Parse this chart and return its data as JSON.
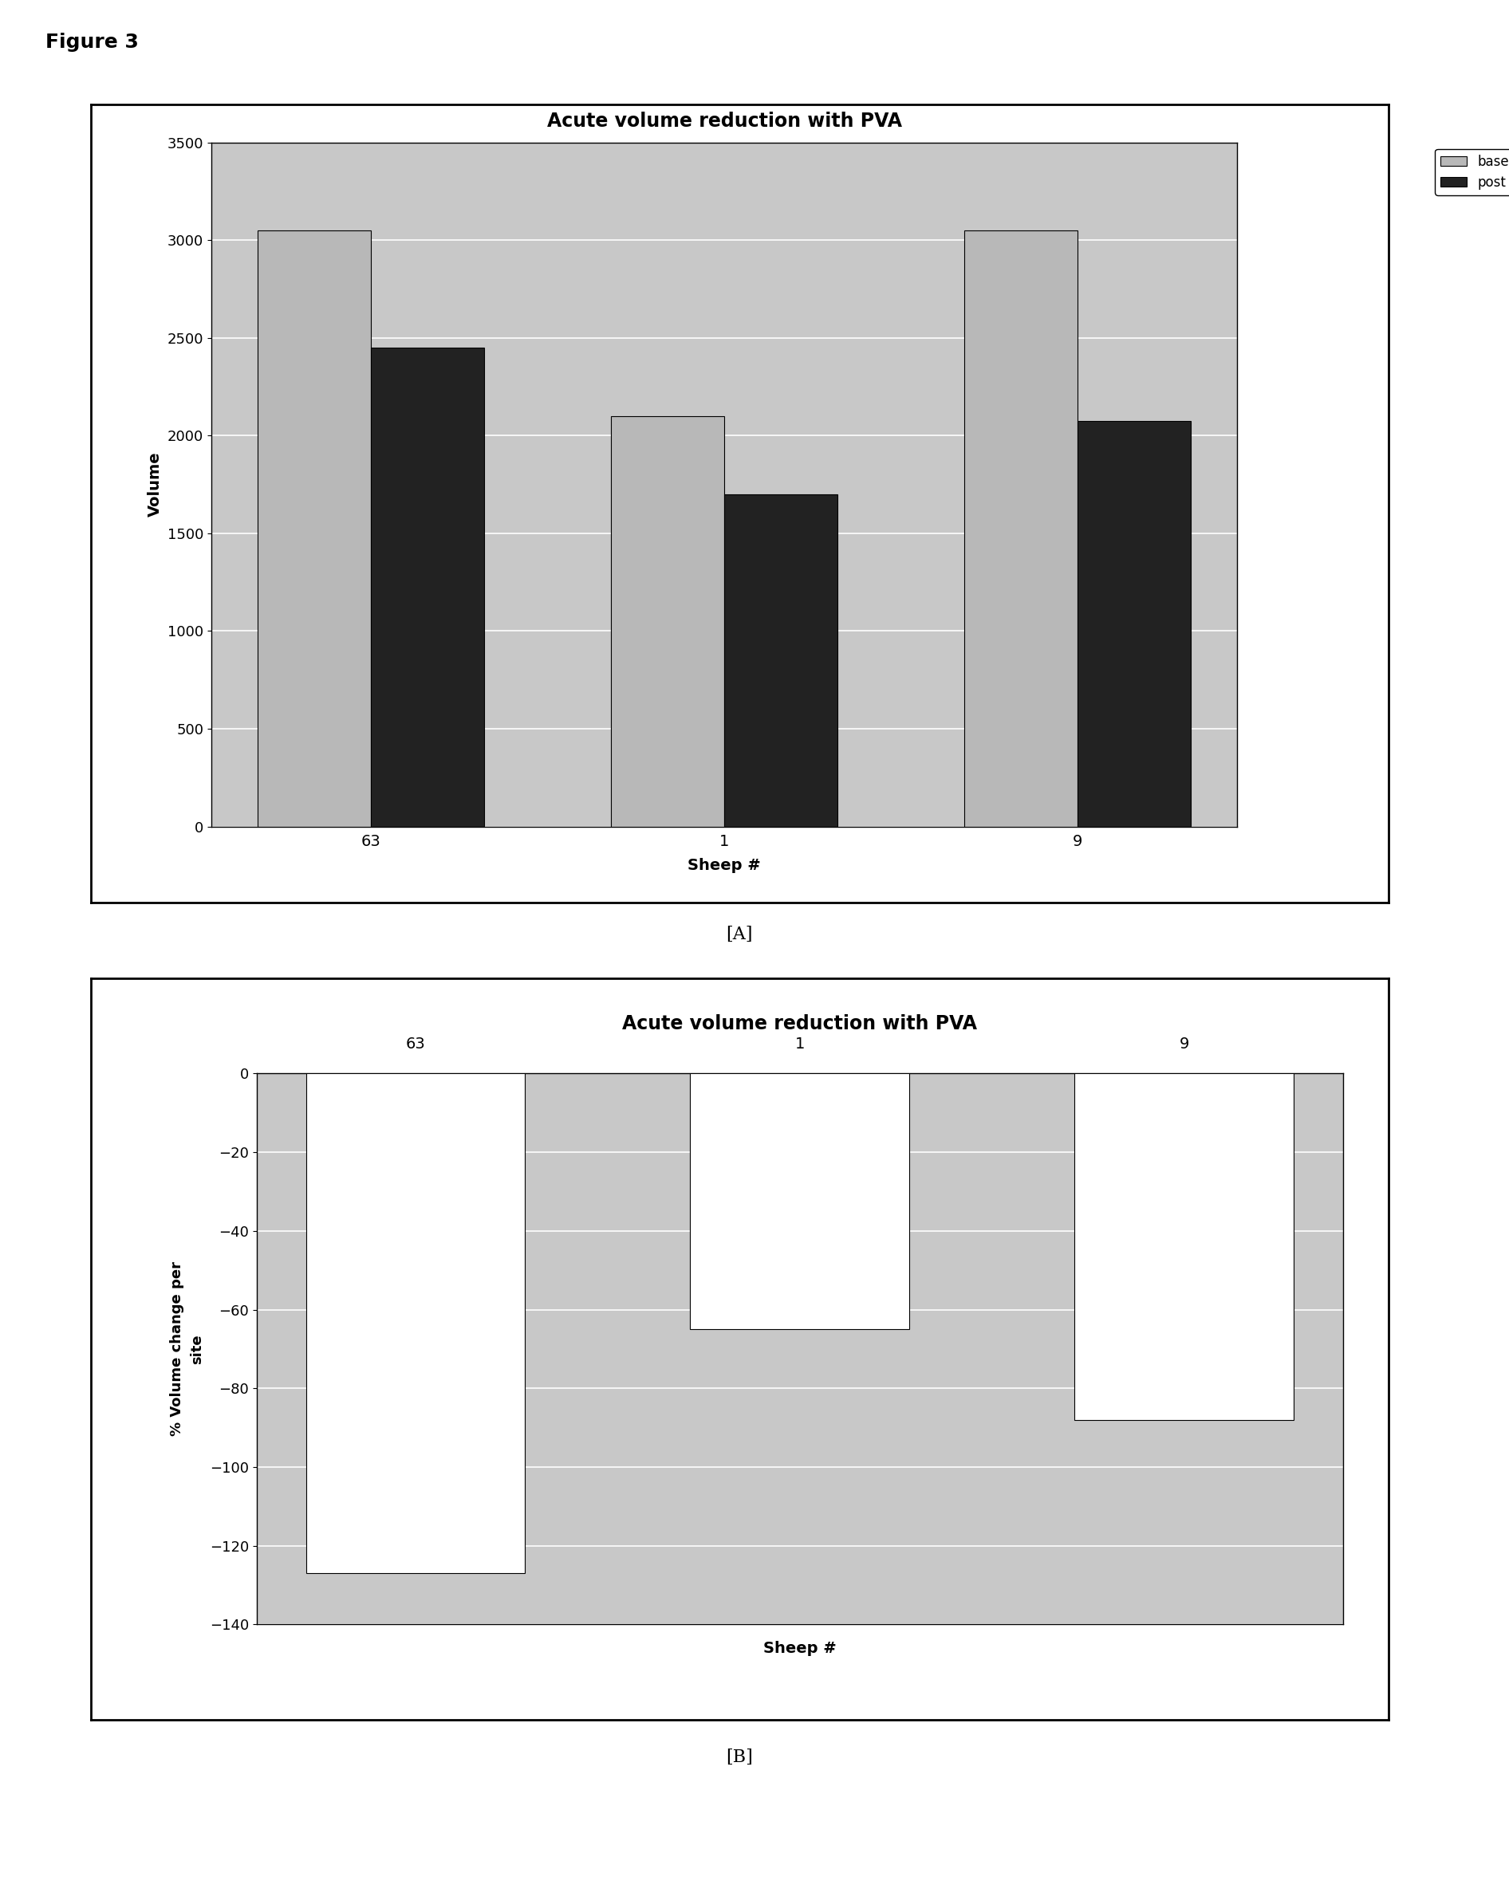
{
  "fig_label": "Figure 3",
  "chart_A": {
    "title": "Acute volume reduction with PVA",
    "categories": [
      "63",
      "1",
      "9"
    ],
    "baseline": [
      3050,
      2100,
      3050
    ],
    "post": [
      2450,
      1700,
      2075
    ],
    "ylabel": "Volume",
    "xlabel": "Sheep #",
    "ylim": [
      0,
      3500
    ],
    "yticks": [
      0,
      500,
      1000,
      1500,
      2000,
      2500,
      3000,
      3500
    ],
    "baseline_color": "#b8b8b8",
    "post_color": "#222222",
    "legend_labels": [
      "baseline",
      "post"
    ],
    "plot_bg": "#c8c8c8",
    "grid_color": "#ffffff"
  },
  "chart_B": {
    "title": "Acute volume reduction with PVA",
    "categories": [
      "63",
      "1",
      "9"
    ],
    "values": [
      -127,
      -65,
      -88
    ],
    "ylabel": "% Volume change per\nsite",
    "xlabel": "Sheep #",
    "ylim": [
      -140,
      0
    ],
    "yticks": [
      0,
      -20,
      -40,
      -60,
      -80,
      -100,
      -120,
      -140
    ],
    "bar_color": "#ffffff",
    "plot_bg": "#c8c8c8",
    "grid_color": "#ffffff"
  },
  "label_A": "[A]",
  "label_B": "[B]"
}
